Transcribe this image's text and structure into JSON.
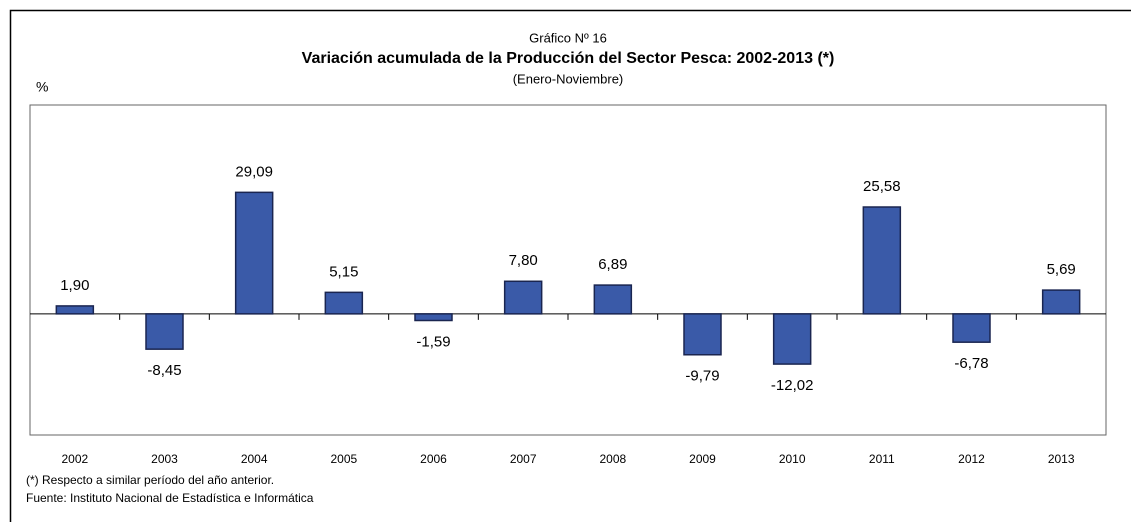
{
  "chart_data": {
    "type": "bar",
    "supertitle": "Gráfico Nº 16",
    "title": "Variación  acumulada de la Producción del Sector Pesca: 2002-2013 (*)",
    "subtitle": "(Enero-Noviembre)",
    "y_label": "%",
    "categories": [
      "2002",
      "2003",
      "2004",
      "2005",
      "2006",
      "2007",
      "2008",
      "2009",
      "2010",
      "2011",
      "2012",
      "2013"
    ],
    "values": [
      1.9,
      -8.45,
      29.09,
      5.15,
      -1.59,
      7.8,
      6.89,
      -9.79,
      -12.02,
      25.58,
      -6.78,
      5.69
    ],
    "value_labels": [
      "1,90",
      "-8,45",
      "29,09",
      "5,15",
      "-1,59",
      "7,80",
      "6,89",
      "-9,79",
      "-12,02",
      "25,58",
      "-6,78",
      "5,69"
    ],
    "color": "#3a5aa8",
    "ylim": [
      -29,
      50
    ],
    "notes": [
      "(*) Respecto a similar período del año anterior.",
      "Fuente: Instituto Nacional de Estadística e Informática"
    ]
  }
}
